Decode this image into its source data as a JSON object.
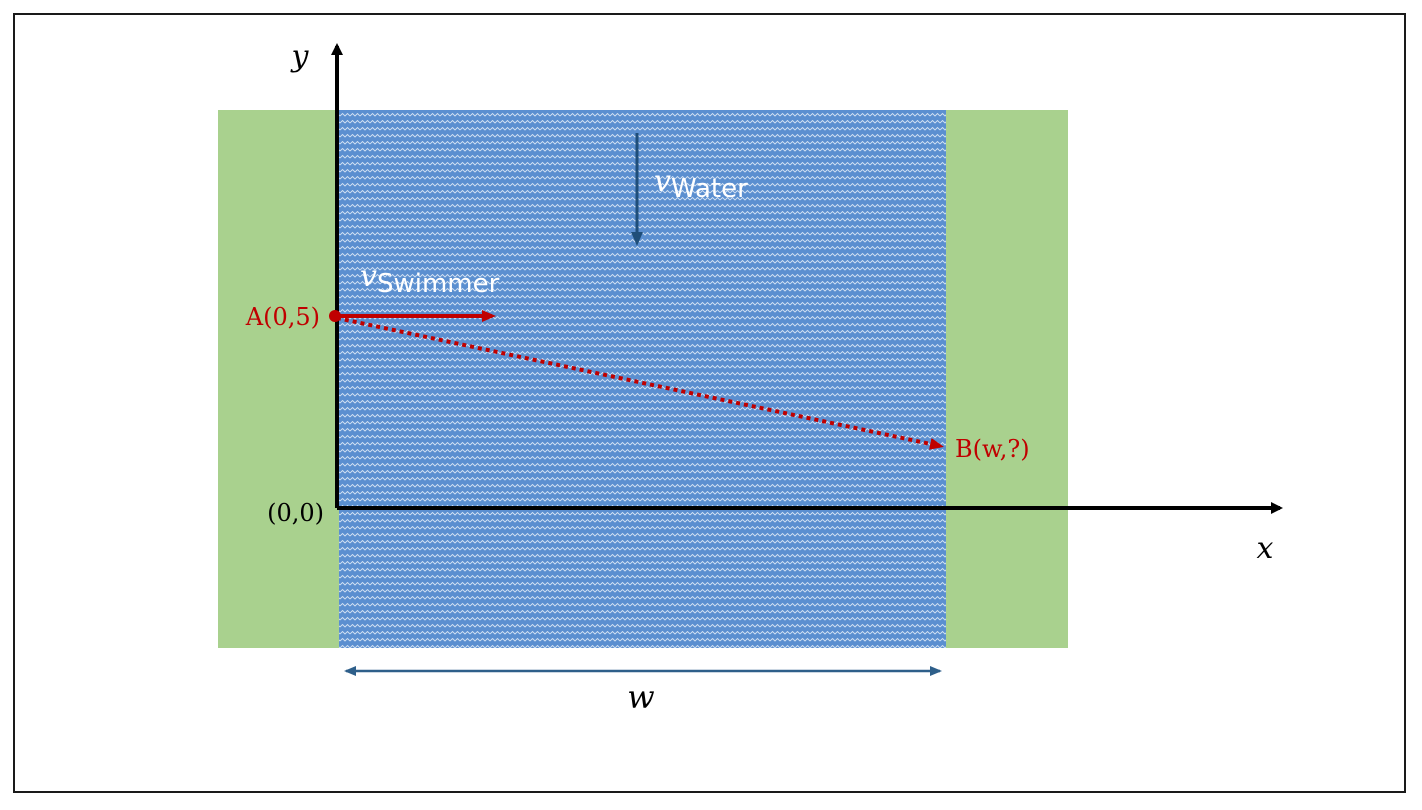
{
  "diagram": {
    "axes": {
      "y_label": "y",
      "x_label": "x",
      "origin_label": "(0,0)"
    },
    "points": {
      "start_label": "A(0,5)",
      "end_label": "B(w,?)"
    },
    "velocities": {
      "water_symbol": "v",
      "water_subscript": "Water",
      "swimmer_symbol": "v",
      "swimmer_subscript": "Swimmer"
    },
    "width_label": "w",
    "colors": {
      "bank": "#a9d18e",
      "river": "#5b8fd0",
      "river_wave": "#ffffff",
      "swimmer": "#c00000",
      "water_arrow": "#1f4e79",
      "width_arrow": "#2e5f8a",
      "axis": "#000000"
    }
  }
}
